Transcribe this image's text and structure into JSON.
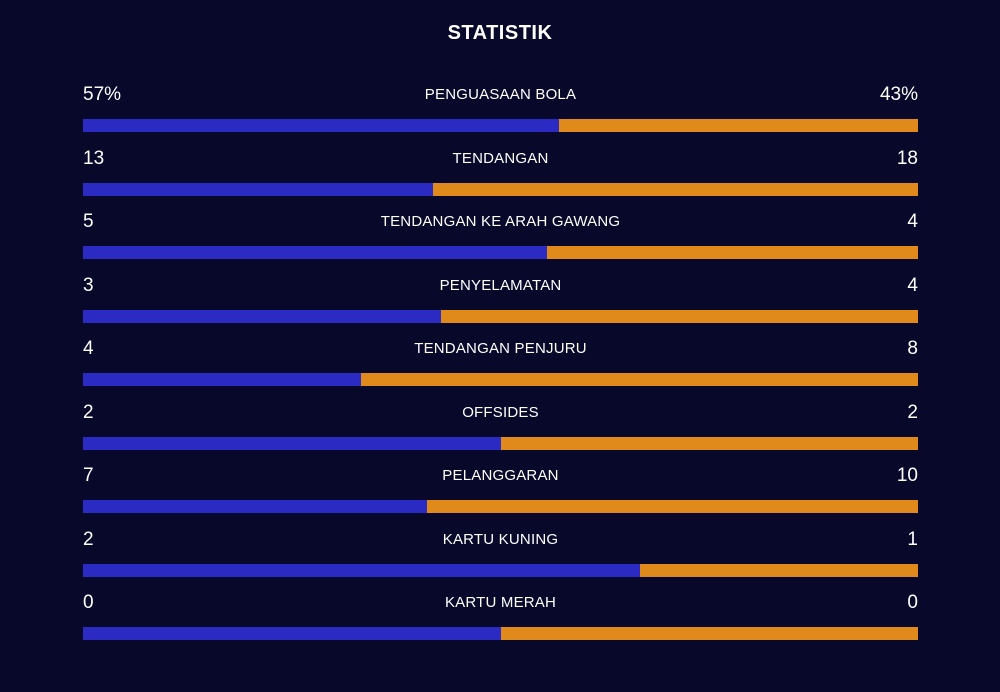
{
  "title": "STATISTIK",
  "colors": {
    "home": "#2b2bc4",
    "away": "#e08a1c",
    "background": "#08082a"
  },
  "stats": [
    {
      "label": "PENGUASAAN BOLA",
      "home": "57%",
      "away": "43%",
      "home_value": 57,
      "away_value": 43
    },
    {
      "label": "TENDANGAN",
      "home": "13",
      "away": "18",
      "home_value": 13,
      "away_value": 18
    },
    {
      "label": "TENDANGAN KE ARAH GAWANG",
      "home": "5",
      "away": "4",
      "home_value": 5,
      "away_value": 4
    },
    {
      "label": "PENYELAMATAN",
      "home": "3",
      "away": "4",
      "home_value": 3,
      "away_value": 4
    },
    {
      "label": "TENDANGAN PENJURU",
      "home": "4",
      "away": "8",
      "home_value": 4,
      "away_value": 8
    },
    {
      "label": "OFFSIDES",
      "home": "2",
      "away": "2",
      "home_value": 2,
      "away_value": 2
    },
    {
      "label": "PELANGGARAN",
      "home": "7",
      "away": "10",
      "home_value": 7,
      "away_value": 10
    },
    {
      "label": "KARTU KUNING",
      "home": "2",
      "away": "1",
      "home_value": 2,
      "away_value": 1
    },
    {
      "label": "KARTU MERAH",
      "home": "0",
      "away": "0",
      "home_value": 0,
      "away_value": 0
    }
  ]
}
